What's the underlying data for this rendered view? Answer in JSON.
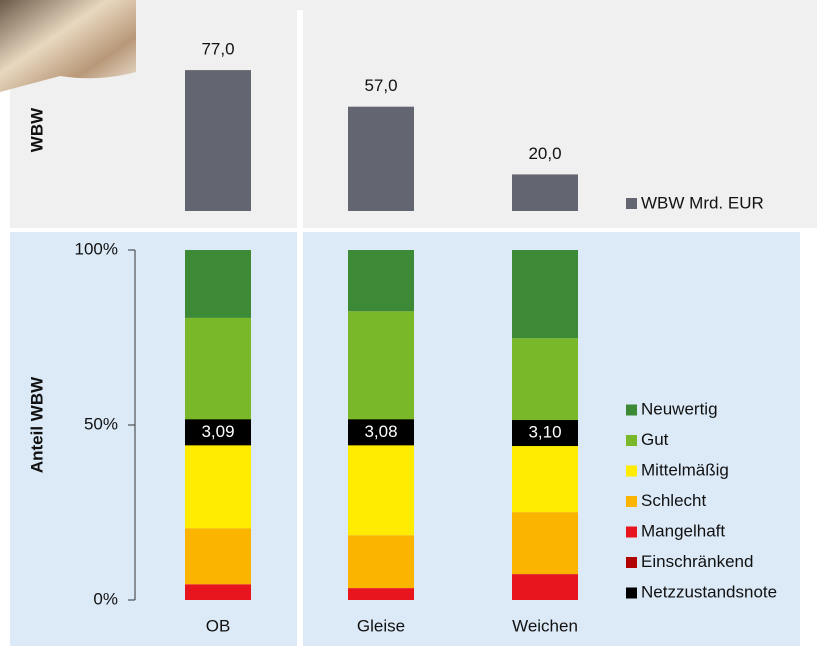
{
  "chart_data": [
    {
      "type": "bar",
      "y_label": "WBW",
      "ylim": [
        0,
        100
      ],
      "series": [
        {
          "name": "WBW Mrd. EUR",
          "color": "#636570",
          "values": [
            77.0,
            57.0,
            20.0
          ],
          "value_labels": [
            "77,0",
            "57,0",
            "20,0"
          ]
        }
      ]
    },
    {
      "type": "stacked_bar",
      "y_label": "Anteil WBW",
      "categories": [
        "OB",
        "Gleise",
        "Weichen"
      ],
      "ylim": [
        0,
        100
      ],
      "yticks": [
        {
          "value": 0,
          "label": "0%"
        },
        {
          "value": 50,
          "label": "50%"
        },
        {
          "value": 100,
          "label": "100%"
        }
      ],
      "series": [
        {
          "name": "Neuwertig",
          "color": "#3d8a36",
          "values": [
            19.4,
            17.5,
            25.2
          ]
        },
        {
          "name": "Gut",
          "color": "#78b829",
          "values": [
            32.7,
            34.6,
            27.1
          ]
        },
        {
          "name": "Mittelmäßig",
          "color": "#ffec00",
          "values": [
            27.4,
            29.4,
            22.6
          ]
        },
        {
          "name": "Schlecht",
          "color": "#fbb400",
          "values": [
            16.0,
            15.1,
            17.7
          ]
        },
        {
          "name": "Mangelhaft",
          "color": "#e8141e",
          "values": [
            4.5,
            3.4,
            7.4
          ]
        },
        {
          "name": "Einschränkend",
          "color": "#b00000",
          "values": [
            0,
            0,
            0
          ]
        },
        {
          "name": "Netzzustandsnote",
          "color": "#000000",
          "overlay": true,
          "values": [
            3.09,
            3.08,
            3.1
          ],
          "value_labels": [
            "3,09",
            "3,08",
            "3,10"
          ]
        }
      ]
    }
  ]
}
